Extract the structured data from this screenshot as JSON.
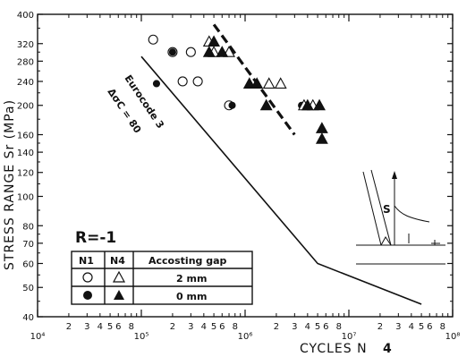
{
  "chart_data": {
    "type": "scatter",
    "x_scale": "log",
    "y_scale": "log",
    "xlim": [
      10000,
      100000000
    ],
    "ylim": [
      40,
      400
    ],
    "xlabel": "CYCLES N",
    "xlabel_suffix": "4",
    "ylabel": "STRESS RANGE Sr (MPa)",
    "x_decade_labels": [
      "10⁴",
      "10⁵",
      "10⁶",
      "10⁷",
      "10⁸"
    ],
    "x_minor_labels": [
      "2",
      "3",
      "4",
      "5",
      "6",
      "8"
    ],
    "y_tick_labels": [
      "40",
      "50",
      "60",
      "70",
      "80",
      "100",
      "120",
      "140",
      "160",
      "200",
      "240",
      "280",
      "320",
      "400"
    ],
    "y_ticks": [
      40,
      50,
      60,
      70,
      80,
      100,
      120,
      140,
      160,
      200,
      240,
      280,
      320,
      400
    ],
    "series": [
      {
        "name": "N1, 2 mm",
        "marker": "open-circle",
        "points": [
          [
            130000,
            330
          ],
          [
            200000,
            300
          ],
          [
            250000,
            240
          ],
          [
            300000,
            300
          ],
          [
            350000,
            240
          ],
          [
            700000,
            200
          ]
        ]
      },
      {
        "name": "N1, 0 mm",
        "marker": "filled-circle",
        "points": [
          [
            140000,
            236
          ],
          [
            200000,
            300
          ],
          [
            750000,
            200
          ],
          [
            3500000,
            200
          ]
        ]
      },
      {
        "name": "N4, 2 mm",
        "marker": "open-triangle",
        "points": [
          [
            450000,
            325
          ],
          [
            500000,
            300
          ],
          [
            700000,
            300
          ],
          [
            1700000,
            236
          ],
          [
            2200000,
            236
          ],
          [
            3700000,
            200
          ],
          [
            4500000,
            200
          ]
        ]
      },
      {
        "name": "N4, 0 mm",
        "marker": "filled-triangle",
        "points": [
          [
            450000,
            300
          ],
          [
            500000,
            325
          ],
          [
            600000,
            300
          ],
          [
            1100000,
            236
          ],
          [
            1300000,
            236
          ],
          [
            1600000,
            200
          ],
          [
            4000000,
            200
          ],
          [
            5200000,
            200
          ],
          [
            5500000,
            168
          ],
          [
            5500000,
            155
          ]
        ]
      }
    ],
    "curves": [
      {
        "name": "Eurocode 3 ΔσC = 80",
        "points": [
          [
            100000,
            290
          ],
          [
            5000000,
            60
          ],
          [
            50000000,
            44
          ]
        ]
      },
      {
        "name": "mean fit",
        "style": "dashed-bold",
        "points": [
          [
            500000,
            370
          ],
          [
            3000000,
            160
          ]
        ]
      }
    ],
    "annotations": {
      "eurocode_line1": "Eurocode 3",
      "eurocode_line2": "ΔσC = 80",
      "r_ratio": "R=-1",
      "sketch_label": "S"
    },
    "legend": {
      "placement": "bottom-left",
      "headers": [
        "N1",
        "N4",
        "Accosting gap"
      ],
      "rows": [
        {
          "n1_marker": "open-circle",
          "n4_marker": "open-triangle",
          "gap": "2 mm"
        },
        {
          "n1_marker": "filled-circle",
          "n4_marker": "filled-triangle",
          "gap": "0 mm"
        }
      ]
    },
    "grid": false
  }
}
